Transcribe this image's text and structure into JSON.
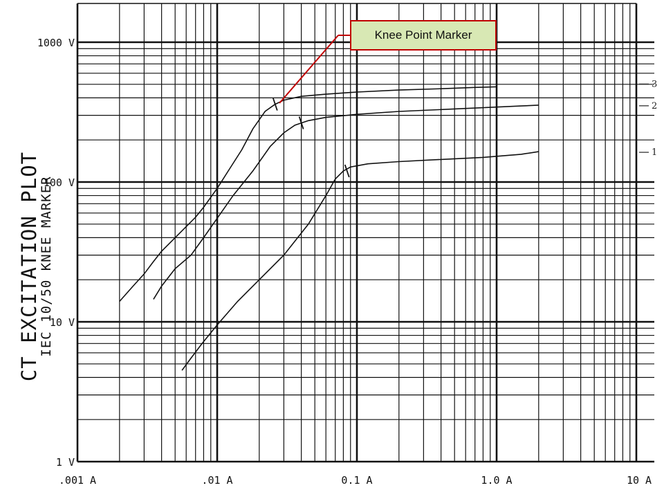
{
  "chart_data": {
    "type": "line",
    "title": "CT EXCITATION PLOT",
    "subtitle": "IEC 10/50 KNEE MARKER",
    "x_scale": "log",
    "y_scale": "log",
    "xlim": [
      0.001,
      10
    ],
    "ylim": [
      1,
      1000
    ],
    "grid": true,
    "x_ticks": [
      {
        "value": 0.001,
        "label": ".001 A"
      },
      {
        "value": 0.01,
        "label": ".01 A"
      },
      {
        "value": 0.1,
        "label": "0.1 A"
      },
      {
        "value": 1,
        "label": "1.0 A"
      },
      {
        "value": 10,
        "label": "10 A"
      }
    ],
    "y_ticks": [
      {
        "value": 1,
        "label": "1 V"
      },
      {
        "value": 10,
        "label": "10 V"
      },
      {
        "value": 100,
        "label": "100 V"
      },
      {
        "value": 1000,
        "label": "1000 V"
      }
    ],
    "series": [
      {
        "name": "1",
        "x": [
          0.0056,
          0.0065,
          0.0078,
          0.01,
          0.014,
          0.02,
          0.03,
          0.045,
          0.06,
          0.07,
          0.08,
          0.09,
          0.12,
          0.2,
          0.4,
          0.8,
          1.5,
          2.0
        ],
        "y": [
          4.5,
          5.5,
          7,
          9.5,
          14,
          20,
          30,
          50,
          80,
          105,
          120,
          128,
          135,
          140,
          145,
          150,
          158,
          165
        ],
        "knee": {
          "x": 0.085,
          "y": 120
        }
      },
      {
        "name": "2",
        "x": [
          0.0035,
          0.004,
          0.005,
          0.0065,
          0.008,
          0.01,
          0.013,
          0.018,
          0.024,
          0.03,
          0.036,
          0.045,
          0.06,
          0.1,
          0.2,
          0.4,
          0.8,
          1.5,
          2.0
        ],
        "y": [
          14.5,
          18,
          24,
          30,
          40,
          55,
          80,
          120,
          180,
          225,
          255,
          275,
          290,
          305,
          320,
          330,
          340,
          350,
          355
        ],
        "knee": {
          "x": 0.04,
          "y": 265
        }
      },
      {
        "name": "3",
        "x": [
          0.002,
          0.0025,
          0.003,
          0.0035,
          0.004,
          0.005,
          0.006,
          0.007,
          0.008,
          0.01,
          0.012,
          0.015,
          0.018,
          0.022,
          0.026,
          0.03,
          0.04,
          0.06,
          0.1,
          0.2,
          0.4,
          0.7,
          1.0
        ],
        "y": [
          14,
          18,
          22,
          27,
          32,
          40,
          48,
          56,
          66,
          90,
          120,
          170,
          240,
          320,
          360,
          385,
          410,
          425,
          440,
          455,
          465,
          475,
          480
        ],
        "knee": {
          "x": 0.026,
          "y": 360
        }
      }
    ],
    "annotations": [
      {
        "text": "Knee Point Marker",
        "target_series": "3"
      }
    ]
  }
}
